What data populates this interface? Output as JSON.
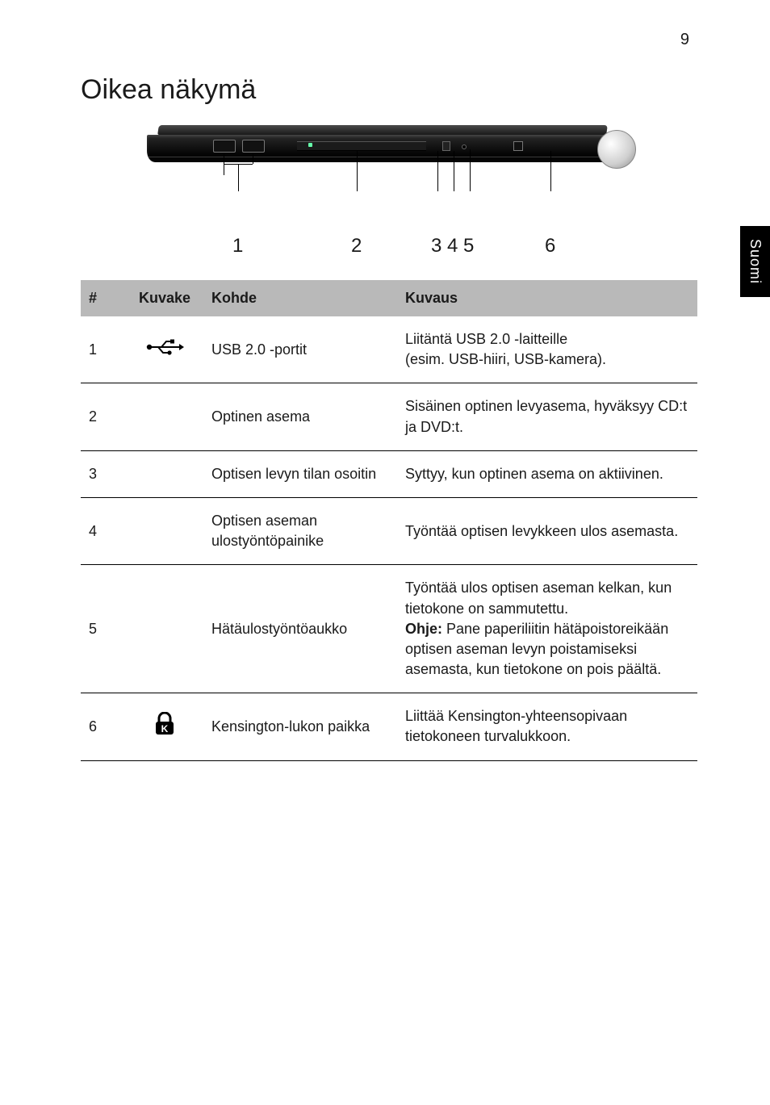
{
  "page_number": "9",
  "side_tab": "Suomi",
  "title": "Oikea näkymä",
  "diagram": {
    "callouts": [
      "1",
      "2",
      "3",
      "4",
      "5",
      "6"
    ]
  },
  "table": {
    "headers": {
      "num": "#",
      "icon": "Kuvake",
      "item": "Kohde",
      "desc": "Kuvaus"
    },
    "rows": [
      {
        "num": "1",
        "icon": "usb",
        "item": "USB 2.0 -portit",
        "desc_html": "Liitäntä USB 2.0 -laitteille<br>(esim. USB-hiiri, USB-kamera)."
      },
      {
        "num": "2",
        "icon": "",
        "item": "Optinen asema",
        "desc_html": "Sisäinen optinen levyasema, hyväksyy CD:t ja DVD:t."
      },
      {
        "num": "3",
        "icon": "",
        "item": "Optisen levyn tilan osoitin",
        "desc_html": "Syttyy, kun optinen asema on aktiivinen."
      },
      {
        "num": "4",
        "icon": "",
        "item": "Optisen aseman ulostyöntöpainike",
        "desc_html": "Työntää optisen levykkeen ulos asemasta."
      },
      {
        "num": "5",
        "icon": "",
        "item": "Hätäulostyöntöaukko",
        "desc_html": "Työntää ulos optisen aseman kelkan, kun tietokone on sammutettu.<br><b>Ohje:</b> Pane paperiliitin hätäpoistoreikään optisen aseman levyn poistamiseksi asemasta, kun tietokone on pois päältä."
      },
      {
        "num": "6",
        "icon": "lock",
        "item": "Kensington-lukon paikka",
        "desc_html": "Liittää Kensington-yhteensopivaan tietokoneen turvalukkoon."
      }
    ]
  },
  "colors": {
    "header_bg": "#b9b9b9",
    "text": "#1a1a1a",
    "rule": "#000000",
    "page_bg": "#ffffff"
  },
  "fonts": {
    "title_size_pt": 26,
    "body_size_pt": 13,
    "header_weight": "bold"
  }
}
